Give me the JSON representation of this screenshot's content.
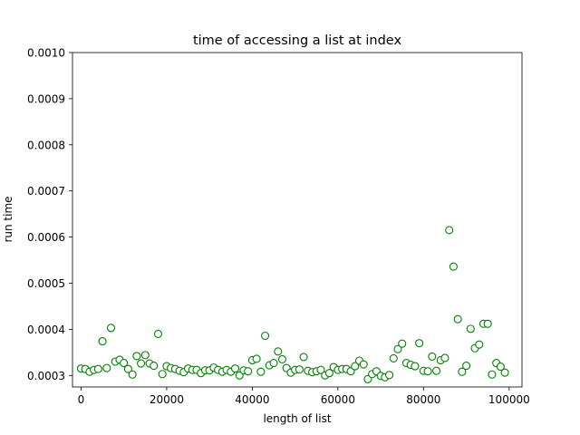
{
  "chart_data": {
    "type": "scatter",
    "title": "time of accessing a list at index",
    "xlabel": "length of list",
    "ylabel": "run time",
    "xlim": [
      -2000,
      103000
    ],
    "ylim": [
      0.000275,
      0.001
    ],
    "xticks": [
      0,
      20000,
      40000,
      60000,
      80000,
      100000
    ],
    "xtick_labels": [
      "0",
      "20000",
      "40000",
      "60000",
      "80000",
      "100000"
    ],
    "yticks": [
      0.0003,
      0.0004,
      0.0005,
      0.0006,
      0.0007,
      0.0008,
      0.0009,
      0.001
    ],
    "ytick_labels": [
      "0.0003",
      "0.0004",
      "0.0005",
      "0.0006",
      "0.0007",
      "0.0008",
      "0.0009",
      "0.0010"
    ],
    "marker_color": "#008000",
    "grid": false,
    "series": [
      {
        "x": [
          0,
          1000,
          2000,
          3000,
          4000,
          5000,
          6000,
          7000,
          8000,
          9000,
          10000,
          11000,
          12000,
          13000,
          14000,
          15000,
          16000,
          17000,
          18000,
          19000,
          20000,
          21000,
          22000,
          23000,
          24000,
          25000,
          26000,
          27000,
          28000,
          29000,
          30000,
          31000,
          32000,
          33000,
          34000,
          35000,
          36000,
          37000,
          38000,
          39000,
          40000,
          41000,
          42000,
          43000,
          44000,
          45000,
          46000,
          47000,
          48000,
          49000,
          50000,
          51000,
          52000,
          53000,
          54000,
          55000,
          56000,
          57000,
          58000,
          59000,
          60000,
          61000,
          62000,
          63000,
          64000,
          65000,
          66000,
          67000,
          68000,
          69000,
          70000,
          71000,
          72000,
          73000,
          74000,
          75000,
          76000,
          77000,
          78000,
          79000,
          80000,
          81000,
          82000,
          83000,
          84000,
          85000,
          86000,
          87000,
          88000,
          89000,
          90000,
          91000,
          92000,
          93000,
          94000,
          95000,
          96000,
          97000,
          98000,
          99000
        ],
        "y": [
          0.000315,
          0.000314,
          0.000308,
          0.000312,
          0.000314,
          0.000374,
          0.000316,
          0.000403,
          0.00033,
          0.000334,
          0.000327,
          0.000314,
          0.000302,
          0.000342,
          0.000326,
          0.000344,
          0.000326,
          0.000321,
          0.00039,
          0.000303,
          0.00032,
          0.000316,
          0.000314,
          0.00031,
          0.000307,
          0.000315,
          0.000312,
          0.000312,
          0.000305,
          0.000311,
          0.000311,
          0.000317,
          0.000312,
          0.000308,
          0.000312,
          0.000308,
          0.000315,
          0.0003,
          0.000311,
          0.000309,
          0.000333,
          0.000336,
          0.000308,
          0.000386,
          0.000322,
          0.000327,
          0.000352,
          0.000335,
          0.000316,
          0.000306,
          0.000312,
          0.000313,
          0.00034,
          0.00031,
          0.000307,
          0.000309,
          0.000312,
          0.0003,
          0.000305,
          0.000318,
          0.000312,
          0.000314,
          0.000314,
          0.000309,
          0.00032,
          0.000332,
          0.000324,
          0.000292,
          0.000303,
          0.000309,
          0.000299,
          0.000296,
          0.000301,
          0.000337,
          0.000357,
          0.000369,
          0.000327,
          0.000323,
          0.00032,
          0.00037,
          0.00031,
          0.000309,
          0.000341,
          0.00031,
          0.000333,
          0.000338,
          0.000615,
          0.000536,
          0.000422,
          0.000308,
          0.000321,
          0.000401,
          0.000359,
          0.000367,
          0.000412,
          0.000412,
          0.000302,
          0.000327,
          0.000319,
          0.000306
        ]
      }
    ]
  }
}
